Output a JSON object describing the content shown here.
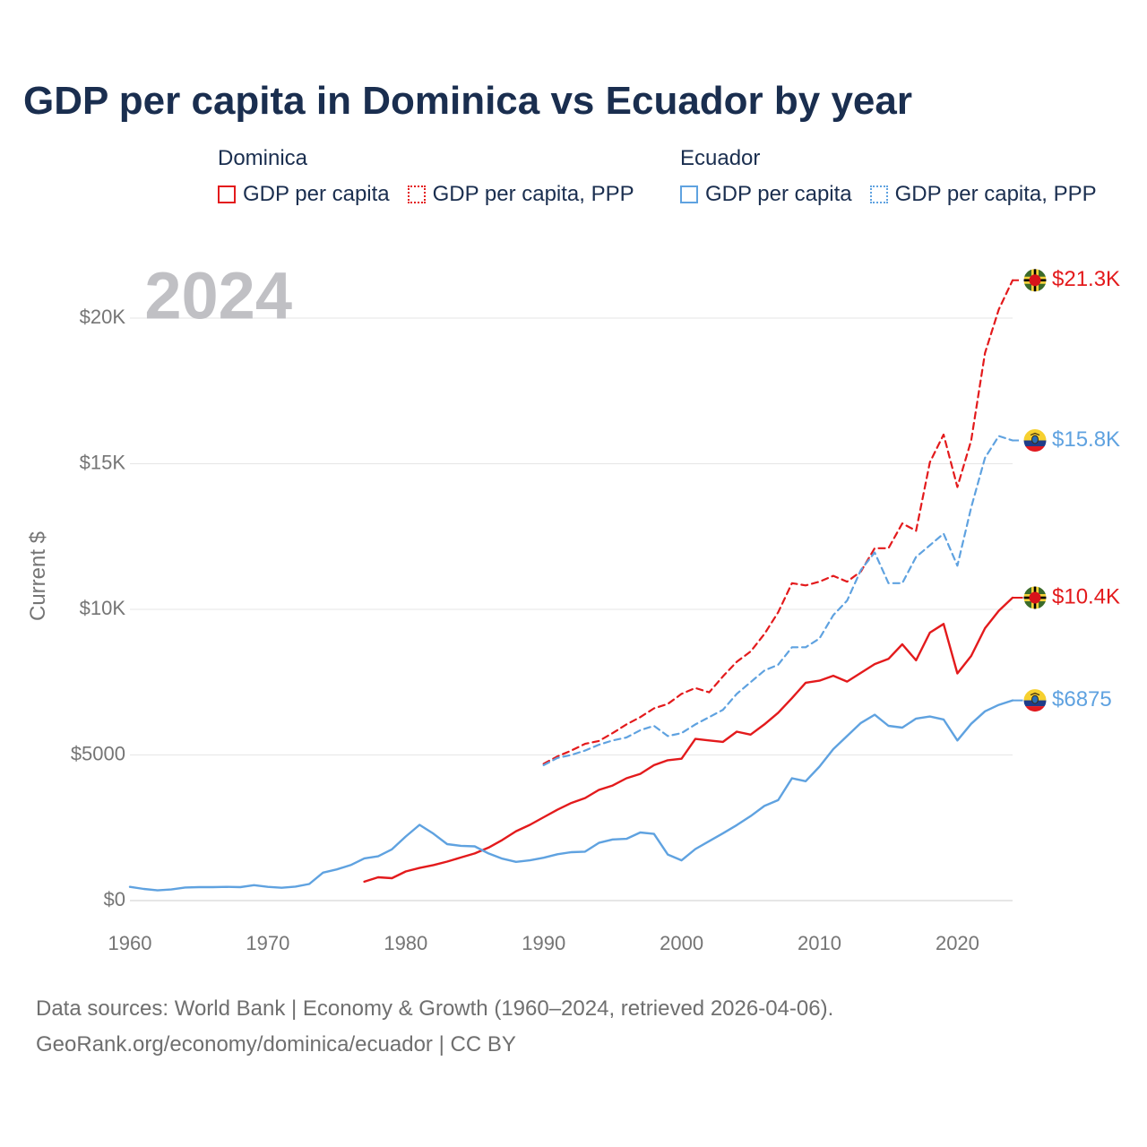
{
  "header": {
    "title": "GDP per capita in Dominica vs Ecuador by year"
  },
  "legend": {
    "groups": [
      {
        "name": "Dominica",
        "items": [
          {
            "label": "GDP per capita",
            "style": "solid",
            "color": "#e31a1c"
          },
          {
            "label": "GDP per capita, PPP",
            "style": "dotted",
            "color": "#e31a1c"
          }
        ]
      },
      {
        "name": "Ecuador",
        "items": [
          {
            "label": "GDP per capita",
            "style": "solid",
            "color": "#5fa2e0"
          },
          {
            "label": "GDP per capita, PPP",
            "style": "dotted",
            "color": "#5fa2e0"
          }
        ]
      }
    ]
  },
  "chart_data": {
    "type": "line",
    "year_label": "2024",
    "ylabel": "Current $",
    "xlabel": "",
    "xlim": [
      1960,
      2024
    ],
    "ylim": [
      0,
      22000
    ],
    "x_ticks": [
      1960,
      1970,
      1980,
      1990,
      2000,
      2010,
      2020
    ],
    "y_ticks": [
      {
        "value": 0,
        "label": "$0"
      },
      {
        "value": 5000,
        "label": "$5000"
      },
      {
        "value": 10000,
        "label": "$10K"
      },
      {
        "value": 15000,
        "label": "$15K"
      },
      {
        "value": 20000,
        "label": "$20K"
      }
    ],
    "grid": true,
    "series": [
      {
        "name": "Dominica GDP per capita, PPP",
        "country": "Dominica",
        "color": "#e31a1c",
        "dashed": true,
        "end_label": "$21.3K",
        "flag": "dominica-flag-icon",
        "x": [
          1990,
          1991,
          1992,
          1993,
          1994,
          1995,
          1996,
          1997,
          1998,
          1999,
          2000,
          2001,
          2002,
          2003,
          2004,
          2005,
          2006,
          2007,
          2008,
          2009,
          2010,
          2011,
          2012,
          2013,
          2014,
          2015,
          2016,
          2017,
          2018,
          2019,
          2020,
          2021,
          2022,
          2023,
          2024
        ],
        "values": [
          4700,
          4950,
          5150,
          5380,
          5480,
          5750,
          6050,
          6300,
          6600,
          6750,
          7100,
          7300,
          7150,
          7700,
          8200,
          8550,
          9150,
          9900,
          10900,
          10820,
          10950,
          11150,
          10950,
          11300,
          12100,
          12100,
          12950,
          12700,
          15050,
          16000,
          14200,
          15800,
          18800,
          20300,
          21300
        ]
      },
      {
        "name": "Ecuador GDP per capita, PPP",
        "country": "Ecuador",
        "color": "#5fa2e0",
        "dashed": true,
        "end_label": "$15.8K",
        "flag": "ecuador-flag-icon",
        "x": [
          1990,
          1991,
          1992,
          1993,
          1994,
          1995,
          1996,
          1997,
          1998,
          1999,
          2000,
          2001,
          2002,
          2003,
          2004,
          2005,
          2006,
          2007,
          2008,
          2009,
          2010,
          2011,
          2012,
          2013,
          2014,
          2015,
          2016,
          2017,
          2018,
          2019,
          2020,
          2021,
          2022,
          2023,
          2024
        ],
        "values": [
          4650,
          4900,
          5000,
          5150,
          5350,
          5500,
          5600,
          5850,
          6000,
          5650,
          5750,
          6050,
          6300,
          6550,
          7100,
          7500,
          7900,
          8100,
          8700,
          8700,
          9000,
          9800,
          10300,
          11350,
          11950,
          10900,
          10900,
          11800,
          12200,
          12600,
          11500,
          13500,
          15200,
          15950,
          15800
        ]
      },
      {
        "name": "Dominica GDP per capita",
        "country": "Dominica",
        "color": "#e31a1c",
        "dashed": false,
        "end_label": "$10.4K",
        "flag": "dominica-flag-icon",
        "x": [
          1977,
          1978,
          1979,
          1980,
          1981,
          1982,
          1983,
          1984,
          1985,
          1986,
          1987,
          1988,
          1989,
          1990,
          1991,
          1992,
          1993,
          1994,
          1995,
          1996,
          1997,
          1998,
          1999,
          2000,
          2001,
          2002,
          2003,
          2004,
          2005,
          2006,
          2007,
          2008,
          2009,
          2010,
          2011,
          2012,
          2013,
          2014,
          2015,
          2016,
          2017,
          2018,
          2019,
          2020,
          2021,
          2022,
          2023,
          2024
        ],
        "values": [
          650,
          800,
          770,
          1000,
          1120,
          1220,
          1340,
          1480,
          1620,
          1820,
          2080,
          2380,
          2600,
          2860,
          3120,
          3350,
          3520,
          3800,
          3950,
          4200,
          4350,
          4650,
          4820,
          4870,
          5550,
          5500,
          5450,
          5800,
          5700,
          6050,
          6450,
          6950,
          7480,
          7550,
          7720,
          7520,
          7820,
          8120,
          8300,
          8800,
          8250,
          9200,
          9500,
          7800,
          8400,
          9350,
          9950,
          10400
        ]
      },
      {
        "name": "Ecuador GDP per capita",
        "country": "Ecuador",
        "color": "#5fa2e0",
        "dashed": false,
        "end_label": "$6875",
        "flag": "ecuador-flag-icon",
        "x": [
          1960,
          1961,
          1962,
          1963,
          1964,
          1965,
          1966,
          1967,
          1968,
          1969,
          1970,
          1971,
          1972,
          1973,
          1974,
          1975,
          1976,
          1977,
          1978,
          1979,
          1980,
          1981,
          1982,
          1983,
          1984,
          1985,
          1986,
          1987,
          1988,
          1989,
          1990,
          1991,
          1992,
          1993,
          1994,
          1995,
          1996,
          1997,
          1998,
          1999,
          2000,
          2001,
          2002,
          2003,
          2004,
          2005,
          2006,
          2007,
          2008,
          2009,
          2010,
          2011,
          2012,
          2013,
          2014,
          2015,
          2016,
          2017,
          2018,
          2019,
          2020,
          2021,
          2022,
          2023,
          2024
        ],
        "values": [
          470,
          400,
          350,
          380,
          450,
          460,
          460,
          470,
          460,
          530,
          470,
          440,
          480,
          570,
          960,
          1070,
          1220,
          1450,
          1520,
          1760,
          2200,
          2600,
          2300,
          1940,
          1880,
          1860,
          1620,
          1440,
          1330,
          1380,
          1470,
          1590,
          1660,
          1680,
          1980,
          2100,
          2120,
          2340,
          2290,
          1580,
          1380,
          1770,
          2040,
          2310,
          2590,
          2900,
          3250,
          3450,
          4200,
          4100,
          4600,
          5200,
          5650,
          6100,
          6380,
          6000,
          5940,
          6250,
          6320,
          6220,
          5500,
          6070,
          6500,
          6720,
          6875
        ]
      }
    ]
  },
  "footer": {
    "line1": "Data sources: World Bank | Economy & Growth (1960–2024, retrieved 2026-04-06).",
    "line2": "GeoRank.org/economy/dominica/ecuador | CC BY"
  }
}
